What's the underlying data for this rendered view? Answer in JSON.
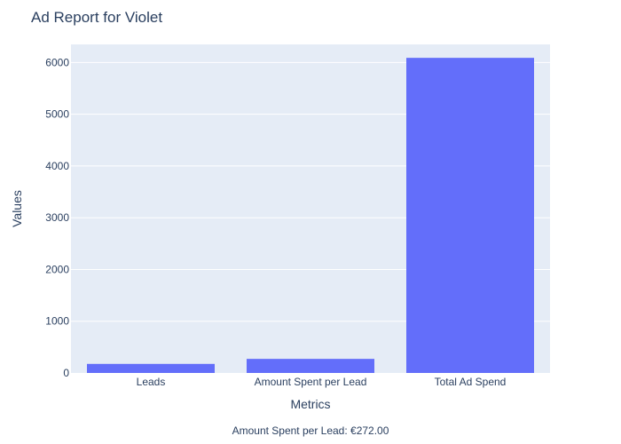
{
  "chart_data": {
    "type": "bar",
    "title": "Ad Report for Violet",
    "xlabel": "Metrics",
    "ylabel": "Values",
    "categories": [
      "Leads",
      "Amount Spent per Lead",
      "Total Ad Spend"
    ],
    "values": [
      175,
      272,
      6090
    ],
    "ylim": [
      0,
      6350
    ],
    "yticks": [
      0,
      1000,
      2000,
      3000,
      4000,
      5000,
      6000
    ],
    "grid": true,
    "annotation": "Amount Spent per Lead: €272.00",
    "colors": {
      "bar": "#636efa",
      "plot_background": "#e5ecf6",
      "grid": "#ffffff",
      "text": "#2a3f5f"
    }
  }
}
